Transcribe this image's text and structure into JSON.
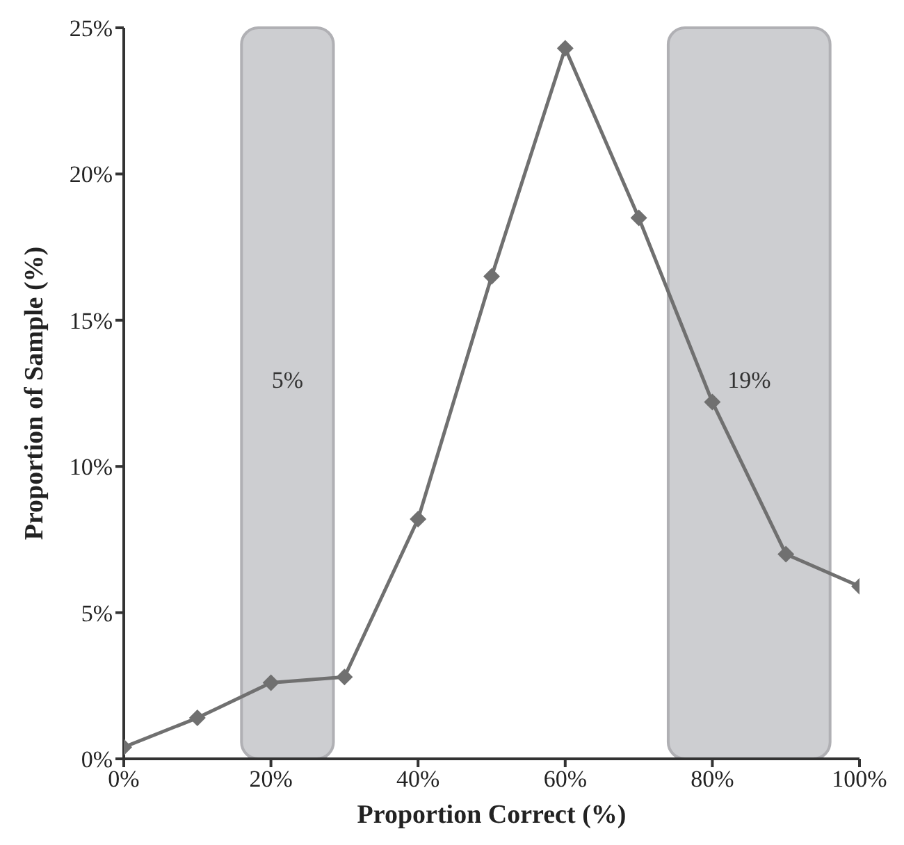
{
  "chart_data": {
    "type": "line",
    "xlabel": "Proportion Correct (%)",
    "ylabel": "Proportion of Sample (%)",
    "x": [
      0,
      10,
      20,
      30,
      40,
      50,
      60,
      70,
      80,
      90,
      100
    ],
    "series": [
      {
        "color": "#707070",
        "values": [
          0.4,
          1.4,
          2.6,
          2.8,
          8.2,
          16.5,
          24.3,
          18.5,
          12.2,
          7.0,
          5.9
        ]
      }
    ],
    "xlim": [
      0,
      100
    ],
    "xticks": [
      {
        "value": 0,
        "label": "0%"
      },
      {
        "value": 20,
        "label": "20%"
      },
      {
        "value": 40,
        "label": "40%"
      },
      {
        "value": 60,
        "label": "60%"
      },
      {
        "value": 80,
        "label": "80%"
      },
      {
        "value": 100,
        "label": "100%"
      }
    ],
    "ylim": [
      0,
      25
    ],
    "yticks": [
      {
        "value": 0,
        "label": "0%"
      },
      {
        "value": 5,
        "label": "5%"
      },
      {
        "value": 10,
        "label": "10%"
      },
      {
        "value": 15,
        "label": "15%"
      },
      {
        "value": 20,
        "label": "20%"
      },
      {
        "value": 25,
        "label": "25%"
      }
    ],
    "bands": [
      {
        "axis": "x",
        "from": 16,
        "to": 28.5,
        "label": "5%",
        "color": "#cdced1"
      },
      {
        "axis": "x",
        "from": 74,
        "to": 96,
        "label": "19%",
        "color": "#cdced1"
      }
    ],
    "marker": "diamond",
    "line_style": "solid",
    "grid": false
  }
}
